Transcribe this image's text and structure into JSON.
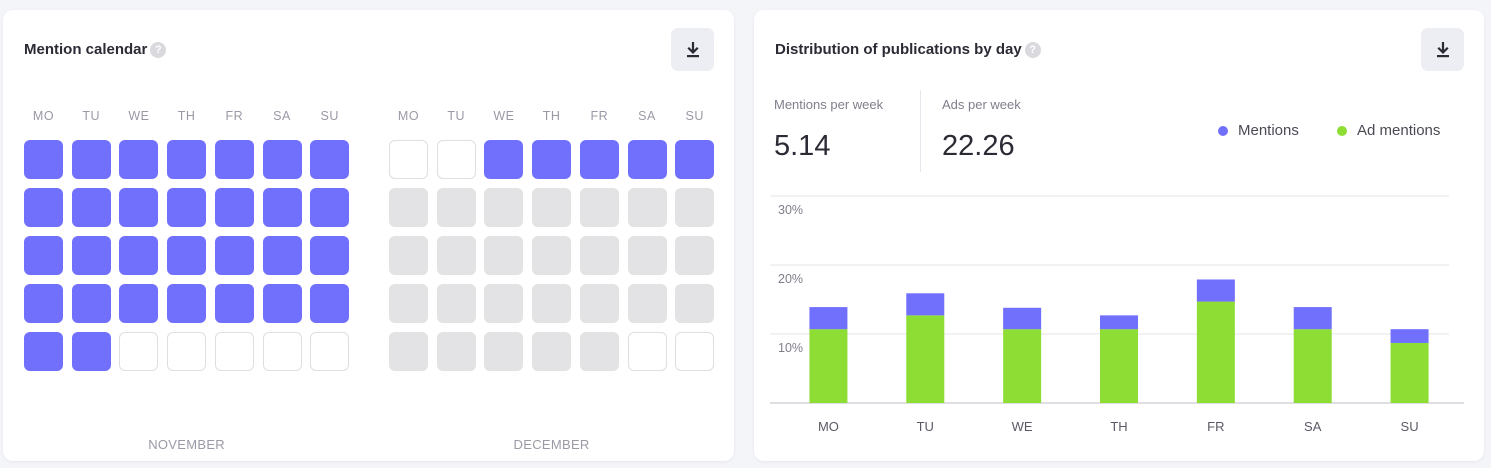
{
  "calendar": {
    "title": "Mention calendar",
    "help_glyph": "?",
    "download_icon": "download-icon",
    "weekdays": [
      "MO",
      "TU",
      "WE",
      "TH",
      "FR",
      "SA",
      "SU"
    ],
    "months": [
      {
        "name": "NOVEMBER",
        "cells": [
          [
            "on",
            "on",
            "on",
            "on",
            "on",
            "on",
            "on"
          ],
          [
            "on",
            "on",
            "on",
            "on",
            "on",
            "on",
            "on"
          ],
          [
            "on",
            "on",
            "on",
            "on",
            "on",
            "on",
            "on"
          ],
          [
            "on",
            "on",
            "on",
            "on",
            "on",
            "on",
            "on"
          ],
          [
            "on",
            "on",
            "off",
            "off",
            "off",
            "off",
            "off"
          ]
        ]
      },
      {
        "name": "DECEMBER",
        "cells": [
          [
            "off",
            "off",
            "on",
            "on",
            "on",
            "on",
            "on"
          ],
          [
            "future",
            "future",
            "future",
            "future",
            "future",
            "future",
            "future"
          ],
          [
            "future",
            "future",
            "future",
            "future",
            "future",
            "future",
            "future"
          ],
          [
            "future",
            "future",
            "future",
            "future",
            "future",
            "future",
            "future"
          ],
          [
            "future",
            "future",
            "future",
            "future",
            "future",
            "off",
            "off"
          ]
        ]
      }
    ]
  },
  "distribution": {
    "title": "Distribution of publications by day",
    "help_glyph": "?",
    "download_icon": "download-icon",
    "stats": [
      {
        "label": "Mentions per week",
        "value": "5.14"
      },
      {
        "label": "Ads per week",
        "value": "22.26"
      }
    ],
    "legend": [
      {
        "label": "Mentions",
        "color": "#7170fd"
      },
      {
        "label": "Ad mentions",
        "color": "#8ddd34"
      }
    ]
  },
  "colors": {
    "mention": "#7170fd",
    "ad_mention": "#8ddd34",
    "empty_cell": "#e3e3e5"
  },
  "chart_data": {
    "type": "bar",
    "stacked": true,
    "categories": [
      "MO",
      "TU",
      "WE",
      "TH",
      "FR",
      "SA",
      "SU"
    ],
    "series": [
      {
        "name": "Ad mentions",
        "values": [
          10.7,
          12.7,
          10.7,
          10.7,
          14.7,
          10.7,
          8.7
        ]
      },
      {
        "name": "Mentions",
        "values": [
          3.2,
          3.2,
          3.1,
          2.0,
          3.2,
          3.2,
          2.0
        ]
      }
    ],
    "ylim": [
      0,
      30
    ],
    "yticks": [
      "30%",
      "20%",
      "10%"
    ],
    "ytick_values": [
      30,
      20,
      10
    ],
    "grid": true,
    "legend_position": "top-right"
  }
}
